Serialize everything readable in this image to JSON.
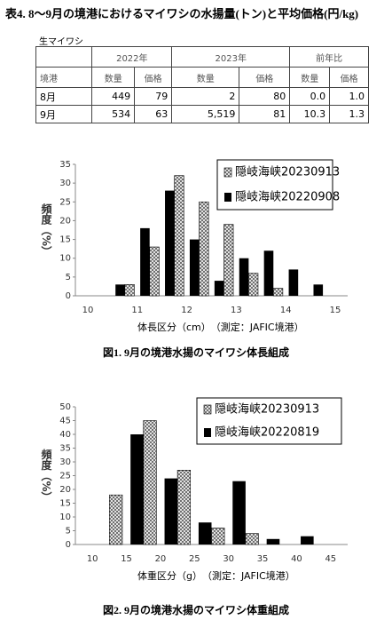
{
  "table": {
    "title": "表4. 8～9月の境港におけるマイワシの水揚量(トン)と平均価格(円/kg)",
    "group_label": "生マイワシ",
    "header_groups": [
      "2022年",
      "2023年",
      "前年比"
    ],
    "columns": [
      "境港",
      "数量",
      "価格",
      "数量",
      "価格",
      "数量",
      "価格"
    ],
    "rows": [
      [
        "8月",
        "449",
        "79",
        "2",
        "80",
        "0.0",
        "1.0"
      ],
      [
        "9月",
        "534",
        "63",
        "5,519",
        "81",
        "10.3",
        "1.3"
      ]
    ]
  },
  "chart_data": [
    {
      "type": "bar",
      "caption": "図1. 9月の境港水揚のマイワシ体長組成",
      "x_label": "体長区分（cm）　（測定：JAFIC境港）",
      "y_label": "頻度（%）",
      "x": [
        10.75,
        11.25,
        11.75,
        12.25,
        12.75,
        13.25,
        13.75,
        14.25,
        14.75
      ],
      "xlim": [
        9.75,
        15.25
      ],
      "xticks": [
        10,
        11,
        12,
        13,
        14,
        15
      ],
      "ylim": [
        0,
        35
      ],
      "yticks": [
        0,
        5,
        10,
        15,
        20,
        25,
        30,
        35
      ],
      "legend": "upper right",
      "series": [
        {
          "name": "隠岐海峡20230913",
          "color": "#000000",
          "pattern": "crosshatch",
          "values": [
            3,
            13,
            32,
            25,
            19,
            6,
            2,
            0,
            0
          ]
        },
        {
          "name": "隠岐海峡20220908",
          "color": "#000000",
          "pattern": "solid",
          "values": [
            3,
            18,
            28,
            15,
            4,
            10,
            12,
            7,
            3
          ]
        }
      ]
    },
    {
      "type": "bar",
      "caption": "図2. 9月の境港水揚のマイワシ体重組成",
      "x_label": "体重区分（g）　（測定：JAFIC境港）",
      "y_label": "頻度（%）",
      "x": [
        12.5,
        17.5,
        22.5,
        27.5,
        32.5,
        37.5,
        42.5
      ],
      "xlim": [
        7.5,
        47.5
      ],
      "xticks": [
        10,
        15,
        20,
        25,
        30,
        35,
        40,
        45
      ],
      "ylim": [
        0,
        50
      ],
      "yticks": [
        0,
        5,
        10,
        15,
        20,
        25,
        30,
        35,
        40,
        45,
        50
      ],
      "legend": "upper right",
      "series": [
        {
          "name": "隠岐海峡20230913",
          "color": "#000000",
          "pattern": "crosshatch",
          "values": [
            18,
            45,
            27,
            6,
            4,
            0,
            0
          ]
        },
        {
          "name": "隠岐海峡20220819",
          "color": "#000000",
          "pattern": "solid",
          "values": [
            0,
            40,
            24,
            8,
            23,
            2,
            3
          ]
        }
      ]
    }
  ]
}
